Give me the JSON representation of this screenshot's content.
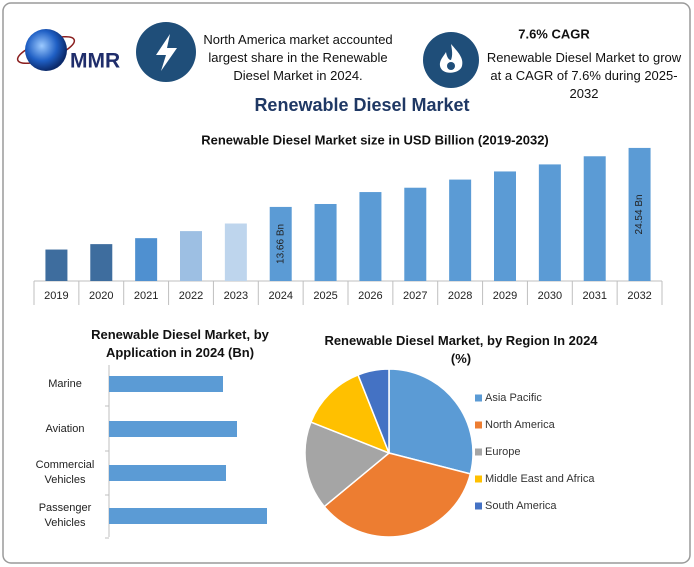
{
  "header": {
    "logo_text": "MMR",
    "highlight_text": "North America market accounted largest share in the Renewable Diesel Market in 2024.",
    "cagr_title": "7.6% CAGR",
    "cagr_text": "Renewable Diesel Market to grow at a CAGR of 7.6% during 2025-2032"
  },
  "title": "Renewable Diesel Market",
  "chart_data": [
    {
      "type": "bar",
      "title": "Renewable Diesel Market size in USD Billion (2019-2032)",
      "categories": [
        "2019",
        "2020",
        "2021",
        "2022",
        "2023",
        "2024",
        "2025",
        "2026",
        "2027",
        "2028",
        "2029",
        "2030",
        "2031",
        "2032"
      ],
      "values": [
        5.8,
        6.8,
        7.9,
        9.2,
        10.6,
        13.66,
        14.2,
        16.4,
        17.2,
        18.7,
        20.2,
        21.5,
        23.0,
        24.54
      ],
      "value_labels": [
        null,
        null,
        null,
        null,
        null,
        "13.66 Bn",
        null,
        null,
        null,
        null,
        null,
        null,
        null,
        "24.54 Bn"
      ],
      "colors": [
        "#3e6d9e",
        "#3e6d9e",
        "#4f90d0",
        "#9dbfe3",
        "#bed5ed",
        "#5b9bd5",
        "#5b9bd5",
        "#5b9bd5",
        "#5b9bd5",
        "#5b9bd5",
        "#5b9bd5",
        "#5b9bd5",
        "#5b9bd5",
        "#5b9bd5"
      ],
      "ylim": [
        0,
        26
      ]
    },
    {
      "type": "barh",
      "title": "Renewable Diesel Market, by Application in 2024 (Bn)",
      "categories": [
        "Marine",
        "Aviation",
        "Commercial Vehicles",
        "Passenger Vehicles"
      ],
      "values": [
        1.14,
        1.28,
        1.17,
        1.58
      ],
      "color": "#5b9bd5",
      "xlim": [
        0,
        2
      ]
    },
    {
      "type": "pie",
      "title": "Renewable Diesel Market, by Region In 2024 (%)",
      "categories": [
        "Asia Pacific",
        "North America",
        "Europe",
        "Middle East and Africa",
        "South America"
      ],
      "values": [
        29,
        35,
        17,
        13,
        6
      ],
      "colors": [
        "#5b9bd5",
        "#ed7d31",
        "#a5a5a5",
        "#ffc000",
        "#4472c4"
      ],
      "legend": "right"
    }
  ]
}
